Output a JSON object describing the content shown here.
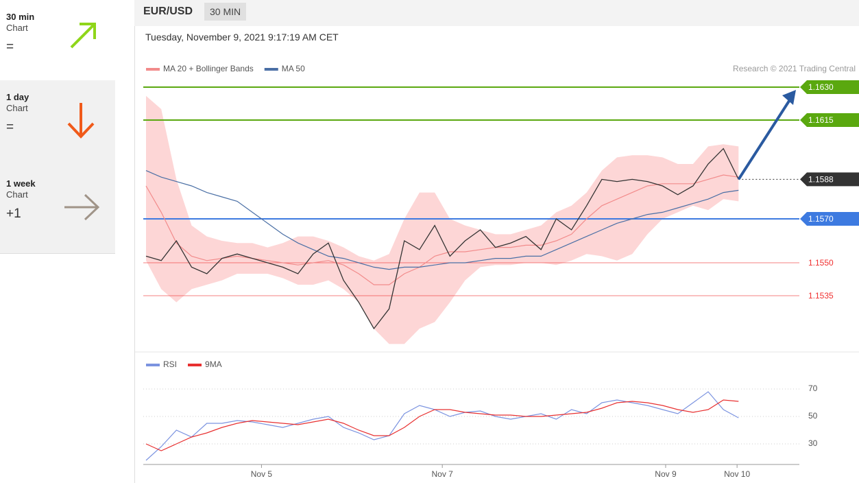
{
  "header": {
    "symbol": "EUR/USD",
    "interval": "30 MIN",
    "timestamp": "Tuesday, November 9, 2021 9:17:19 AM CET"
  },
  "sidebar": [
    {
      "period": "30 min",
      "label": "Chart",
      "status": "="
    },
    {
      "period": "1 day",
      "label": "Chart",
      "status": "="
    },
    {
      "period": "1 week",
      "label": "Chart",
      "status": "+1"
    }
  ],
  "chart_data": [
    {
      "type": "line",
      "credit": "Research © 2021 Trading Central",
      "xlim": [
        0,
        43
      ],
      "ylim": [
        1.151,
        1.1635
      ],
      "price": {
        "color": "#333333",
        "values": [
          1.1553,
          1.1551,
          1.156,
          1.1548,
          1.1545,
          1.1552,
          1.1554,
          1.1552,
          1.155,
          1.1548,
          1.1545,
          1.1554,
          1.1559,
          1.1542,
          1.1532,
          1.152,
          1.1529,
          1.156,
          1.1556,
          1.1567,
          1.1553,
          1.156,
          1.1565,
          1.1557,
          1.1559,
          1.1562,
          1.1556,
          1.157,
          1.1565,
          1.1576,
          1.1588,
          1.1587,
          1.1588,
          1.1587,
          1.1585,
          1.1581,
          1.1585,
          1.1595,
          1.1602,
          1.1588
        ]
      },
      "bands": {
        "color": "#fdd6d6",
        "upper": [
          1.1626,
          1.162,
          1.1588,
          1.1567,
          1.1562,
          1.156,
          1.1559,
          1.1559,
          1.1557,
          1.1559,
          1.1562,
          1.1562,
          1.156,
          1.1557,
          1.1553,
          1.1551,
          1.1554,
          1.157,
          1.1582,
          1.1582,
          1.157,
          1.1567,
          1.1565,
          1.1563,
          1.1563,
          1.1565,
          1.1567,
          1.1573,
          1.1576,
          1.1582,
          1.1592,
          1.1598,
          1.1599,
          1.1599,
          1.1598,
          1.1595,
          1.1595,
          1.1603,
          1.1604,
          1.1603
        ],
        "lower": [
          1.1551,
          1.1538,
          1.1532,
          1.1538,
          1.154,
          1.1542,
          1.1545,
          1.1545,
          1.1545,
          1.1543,
          1.154,
          1.154,
          1.1542,
          1.1538,
          1.1532,
          1.152,
          1.1513,
          1.1513,
          1.152,
          1.1523,
          1.1532,
          1.1542,
          1.1548,
          1.1549,
          1.1549,
          1.155,
          1.155,
          1.1549,
          1.1551,
          1.1554,
          1.1553,
          1.1551,
          1.1554,
          1.1563,
          1.157,
          1.1573,
          1.1576,
          1.1574,
          1.1579,
          1.1578
        ]
      },
      "series": [
        {
          "name": "MA 20 + Bollinger Bands",
          "color": "#f28b8b",
          "values": [
            1.1585,
            1.1573,
            1.1559,
            1.1553,
            1.1551,
            1.1552,
            1.1553,
            1.1552,
            1.1551,
            1.155,
            1.1549,
            1.155,
            1.1551,
            1.1549,
            1.1545,
            1.154,
            1.154,
            1.1545,
            1.1548,
            1.1553,
            1.1555,
            1.1555,
            1.1556,
            1.1557,
            1.1557,
            1.1558,
            1.1558,
            1.156,
            1.1563,
            1.157,
            1.1576,
            1.1579,
            1.1582,
            1.1585,
            1.1586,
            1.1586,
            1.1586,
            1.1588,
            1.159,
            1.1589
          ]
        },
        {
          "name": "MA 50",
          "color": "#4a6fa5",
          "values": [
            1.1592,
            1.1589,
            1.1587,
            1.1585,
            1.1582,
            1.158,
            1.1578,
            1.1573,
            1.1568,
            1.1563,
            1.1559,
            1.1556,
            1.1553,
            1.1552,
            1.155,
            1.1548,
            1.1547,
            1.1548,
            1.1548,
            1.1549,
            1.155,
            1.155,
            1.1551,
            1.1552,
            1.1552,
            1.1553,
            1.1553,
            1.1556,
            1.1559,
            1.1562,
            1.1565,
            1.1568,
            1.157,
            1.1572,
            1.1573,
            1.1575,
            1.1577,
            1.1579,
            1.1582,
            1.1583
          ]
        }
      ],
      "levels": [
        {
          "value": 1.163,
          "label": "1.1630",
          "color": "#5aa80f",
          "line": "solid",
          "boxed": true
        },
        {
          "value": 1.1615,
          "label": "1.1615",
          "color": "#5aa80f",
          "line": "solid",
          "boxed": true
        },
        {
          "value": 1.1588,
          "label": "1.1588",
          "color": "#333333",
          "line": "dotted",
          "boxed": true
        },
        {
          "value": 1.157,
          "label": "1.1570",
          "color": "#3d7ae0",
          "line": "solid",
          "boxed": true
        },
        {
          "value": 1.155,
          "label": "1.1550",
          "color": "#f03030",
          "line": "solid",
          "boxed": false
        },
        {
          "value": 1.1535,
          "label": "1.1535",
          "color": "#f03030",
          "line": "solid",
          "boxed": false
        }
      ]
    },
    {
      "type": "line",
      "xlim": [
        0,
        43
      ],
      "ylim": [
        15,
        75
      ],
      "yticks": [
        30,
        50,
        70
      ],
      "grid": true,
      "xticks": [
        {
          "value": 7.6,
          "label": "Nov 5"
        },
        {
          "value": 19.5,
          "label": "Nov 7"
        },
        {
          "value": 34.2,
          "label": "Nov 9"
        },
        {
          "value": 38.9,
          "label": "Nov 10"
        }
      ],
      "series": [
        {
          "name": "RSI",
          "color": "#7b93e0",
          "values": [
            18,
            28,
            40,
            35,
            45,
            45,
            47,
            46,
            44,
            42,
            45,
            48,
            50,
            42,
            38,
            33,
            36,
            52,
            58,
            55,
            50,
            53,
            54,
            50,
            48,
            50,
            52,
            48,
            55,
            52,
            60,
            62,
            60,
            58,
            55,
            52,
            60,
            68,
            55,
            49
          ]
        },
        {
          "name": "9MA",
          "color": "#e83030",
          "values": [
            30,
            25,
            30,
            35,
            38,
            42,
            45,
            47,
            46,
            45,
            44,
            46,
            48,
            45,
            40,
            36,
            36,
            42,
            50,
            55,
            55,
            53,
            52,
            51,
            51,
            50,
            50,
            51,
            52,
            53,
            56,
            60,
            61,
            60,
            58,
            55,
            53,
            55,
            62,
            61
          ]
        }
      ]
    }
  ]
}
